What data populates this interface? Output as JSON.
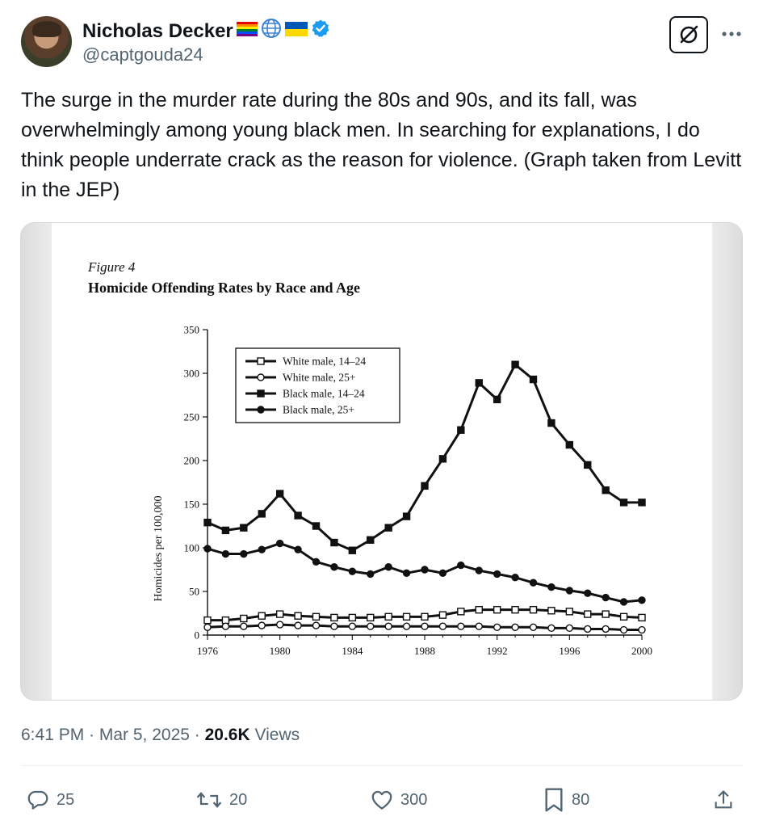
{
  "tweet": {
    "author_name": "Nicholas Decker",
    "author_handle": "@captgouda24",
    "text": "The surge in the murder rate during the 80s and 90s, and its fall, was overwhelmingly among young black men. In searching for explanations, I do think people underrate crack as the reason for violence. (Graph taken from Levitt in the JEP)",
    "timestamp": "6:41 PM · Mar 5, 2025 · ",
    "views_count": "20.6K",
    "views_label": " Views"
  },
  "actions": {
    "replies": "25",
    "retweets": "20",
    "likes": "300",
    "bookmarks": "80"
  },
  "colors": {
    "text": "#0f1419",
    "secondary": "#536471",
    "verified": "#1d9bf0",
    "border": "#cfd9de"
  },
  "chart_data": {
    "type": "line",
    "figure_label": "Figure 4",
    "title": "Homicide Offending Rates by Race and Age",
    "ylabel": "Homicides per 100,000",
    "xlabel": "",
    "xlim": [
      1976,
      2000
    ],
    "ylim": [
      0,
      350
    ],
    "x_ticks": [
      1976,
      1980,
      1984,
      1988,
      1992,
      1996,
      2000
    ],
    "y_ticks": [
      0,
      50,
      100,
      150,
      200,
      250,
      300,
      350
    ],
    "legend_position": "top-left",
    "x": [
      1976,
      1977,
      1978,
      1979,
      1980,
      1981,
      1982,
      1983,
      1984,
      1985,
      1986,
      1987,
      1988,
      1989,
      1990,
      1991,
      1992,
      1993,
      1994,
      1995,
      1996,
      1997,
      1998,
      1999,
      2000
    ],
    "series": [
      {
        "name": "White male, 14–24",
        "marker": "open-square",
        "values": [
          17,
          17,
          19,
          22,
          24,
          22,
          21,
          20,
          20,
          20,
          21,
          21,
          21,
          23,
          27,
          29,
          29,
          29,
          29,
          28,
          27,
          24,
          24,
          21,
          20
        ]
      },
      {
        "name": "White male, 25+",
        "marker": "open-circle",
        "values": [
          9,
          10,
          10,
          11,
          12,
          11,
          11,
          10,
          10,
          10,
          10,
          10,
          10,
          10,
          10,
          10,
          9,
          9,
          9,
          8,
          8,
          7,
          7,
          6,
          6
        ]
      },
      {
        "name": "Black male, 14–24",
        "marker": "filled-square",
        "values": [
          129,
          120,
          123,
          139,
          162,
          137,
          125,
          106,
          97,
          109,
          123,
          136,
          171,
          202,
          235,
          289,
          270,
          310,
          293,
          243,
          218,
          195,
          166,
          152,
          152
        ]
      },
      {
        "name": "Black male, 25+",
        "marker": "filled-circle",
        "values": [
          99,
          93,
          93,
          98,
          105,
          98,
          84,
          78,
          73,
          70,
          78,
          71,
          75,
          71,
          80,
          74,
          70,
          66,
          60,
          55,
          51,
          48,
          43,
          38,
          40
        ]
      }
    ]
  }
}
